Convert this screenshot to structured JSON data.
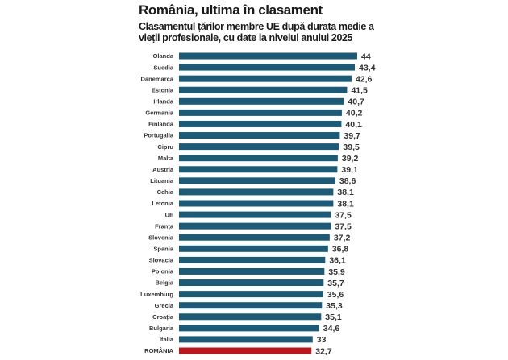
{
  "header": {
    "title": "România, ultima în clasament",
    "subtitle": "Clasamentul țărilor membre UE după durata medie a vieții profesionale, cu date la nivelul anului 2025"
  },
  "colors": {
    "bar": "#1b5b78",
    "highlight": "#c0141b",
    "text": "#333333"
  },
  "chart_data": {
    "type": "bar",
    "orientation": "horizontal",
    "title": "România, ultima în clasament",
    "subtitle": "Clasamentul țărilor membre UE după durata medie a vieții profesionale, cu date la nivelul anului 2025",
    "xlabel": "",
    "ylabel": "",
    "grid": false,
    "categories": [
      "Olanda",
      "Suedia",
      "Danemarca",
      "Estonia",
      "Irlanda",
      "Germania",
      "Finlanda",
      "Portugalia",
      "Cipru",
      "Malta",
      "Austria",
      "Lituania",
      "Cehia",
      "Letonia",
      "UE",
      "Franța",
      "Slovenia",
      "Spania",
      "Slovacia",
      "Polonia",
      "Belgia",
      "Luxemburg",
      "Grecia",
      "Croația",
      "Bulgaria",
      "Italia",
      "ROMÂNIA"
    ],
    "values": [
      44,
      43.4,
      42.6,
      41.5,
      40.7,
      40.2,
      40.1,
      39.7,
      39.5,
      39.2,
      39.1,
      38.6,
      38.1,
      38.1,
      37.5,
      37.5,
      37.2,
      36.8,
      36.1,
      35.9,
      35.7,
      35.6,
      35.3,
      35.1,
      34.6,
      33,
      32.7
    ],
    "value_labels": [
      "44",
      "43,4",
      "42,6",
      "41,5",
      "40,7",
      "40,2",
      "40,1",
      "39,7",
      "39,5",
      "39,2",
      "39,1",
      "38,6",
      "38,1",
      "38,1",
      "37,5",
      "37,5",
      "37,2",
      "36,8",
      "36,1",
      "35,9",
      "35,7",
      "35,6",
      "35,3",
      "35,1",
      "34,6",
      "33",
      "32,7"
    ],
    "highlighted_category": "ROMÂNIA",
    "xlim": [
      0,
      44
    ]
  }
}
